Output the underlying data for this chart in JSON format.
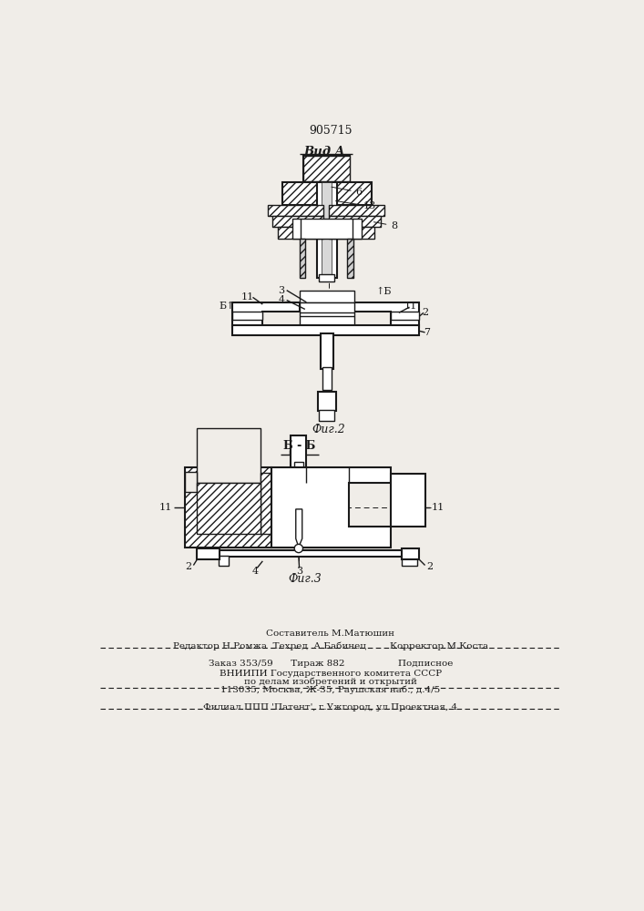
{
  "patent_number": "905715",
  "title_view_a": "Вид А",
  "title_fig2": "Фиг.2",
  "title_fig3": "Фиг.3",
  "title_bb": "Б - Б",
  "footer_line1": "Составитель М.Матюшин",
  "footer_line2": "Редактор Н.Ромжа  Техред  А.Бабинец        Корректор М.Коста",
  "footer_line3": "Заказ 353/59      Тираж 882                  Подписное",
  "footer_line4": "ВНИИПИ Государственного комитета СССР",
  "footer_line5": "по делам изобретений и открытий",
  "footer_line6": "113035, Москва, Ж-35, Раушская наб., д.4/5",
  "footer_line7": "Филиал ППП 'Патент', г.Ужгород, ул.Проектная, 4",
  "bg_color": "#f0ede8",
  "line_color": "#1a1a1a",
  "label_fontsize": 8,
  "footer_fontsize": 7.5
}
